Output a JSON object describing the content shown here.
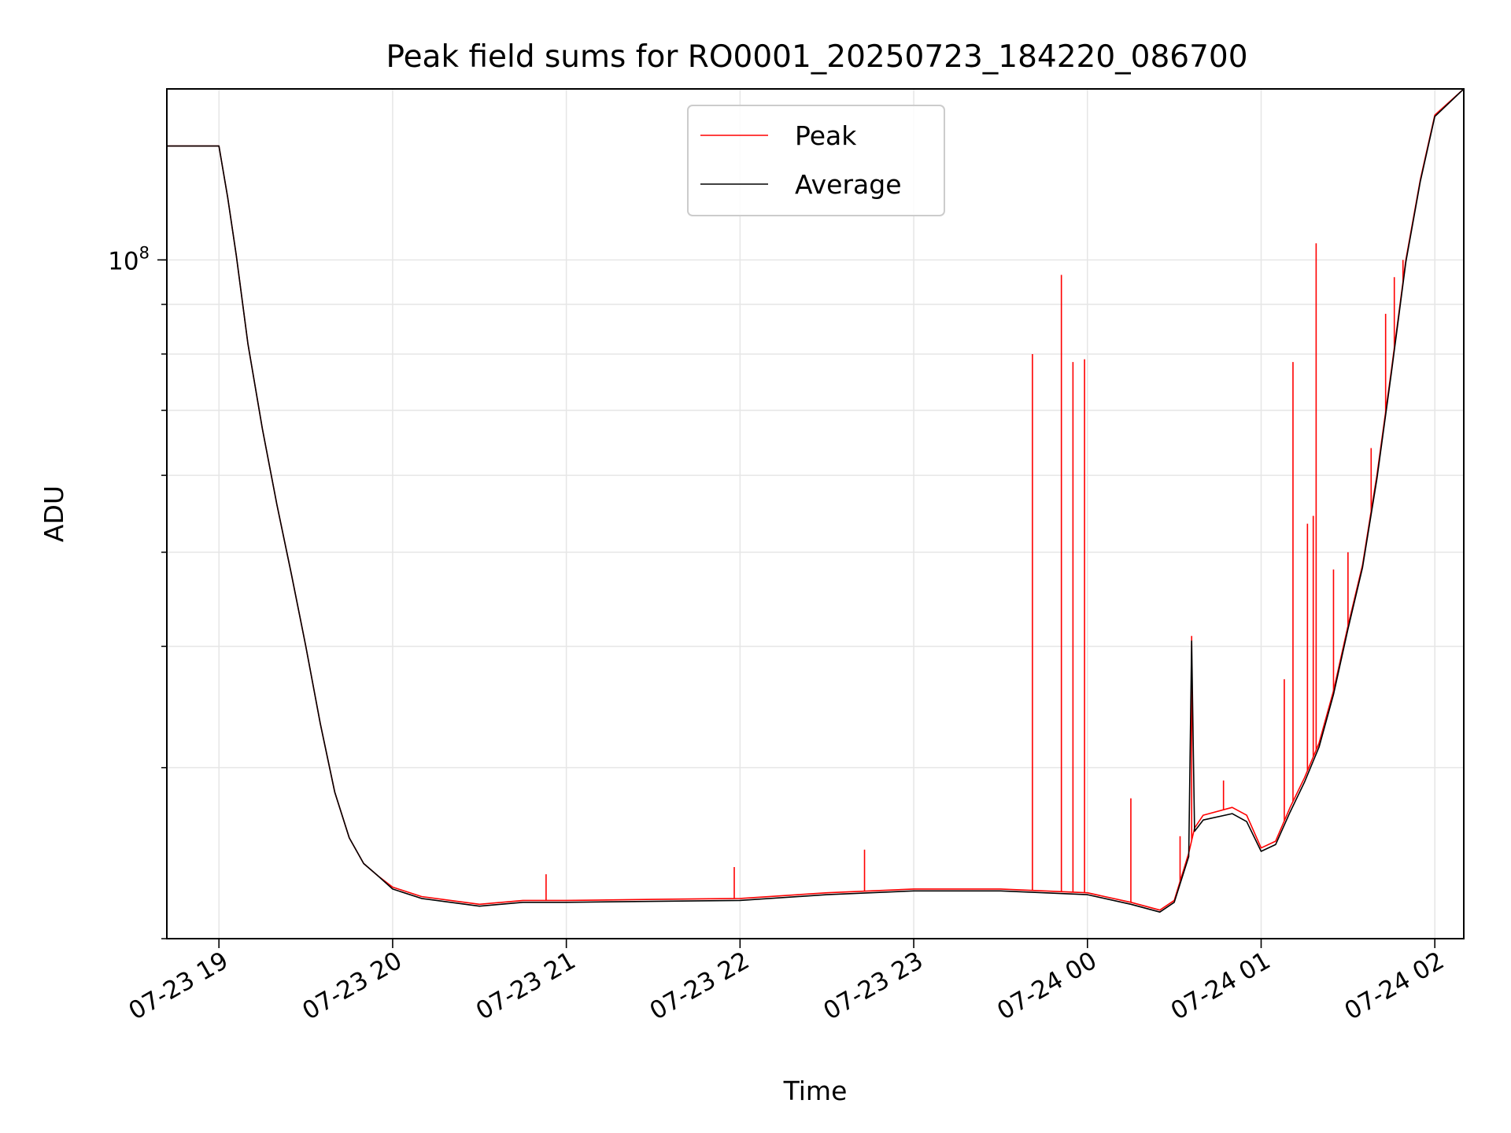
{
  "chart_data": {
    "type": "line",
    "title": "Peak field sums for RO0001_20250723_184220_086700",
    "xlabel": "Time",
    "ylabel": "ADU",
    "y_scale": "log",
    "ylim": [
      20000000,
      150000000
    ],
    "xlim": [
      "2025-07-23 18:42",
      "2025-07-24 02:10"
    ],
    "x_ticks": [
      {
        "t": "2025-07-23 19:00",
        "label": "07-23 19"
      },
      {
        "t": "2025-07-23 20:00",
        "label": "07-23 20"
      },
      {
        "t": "2025-07-23 21:00",
        "label": "07-23 21"
      },
      {
        "t": "2025-07-23 22:00",
        "label": "07-23 22"
      },
      {
        "t": "2025-07-23 23:00",
        "label": "07-23 23"
      },
      {
        "t": "2025-07-24 00:00",
        "label": "07-24 00"
      },
      {
        "t": "2025-07-24 01:00",
        "label": "07-24 01"
      },
      {
        "t": "2025-07-24 02:00",
        "label": "07-24 02"
      }
    ],
    "y_major_ticks": [
      {
        "v": 100000000,
        "base": "10",
        "exp": "8"
      }
    ],
    "grid": true,
    "legend_position": "upper-center",
    "series": [
      {
        "name": "Peak",
        "color": "#ff0000",
        "points": [
          [
            "2025-07-23 18:42",
            131000000
          ],
          [
            "2025-07-23 19:00",
            131000000
          ],
          [
            "2025-07-23 19:03",
            116000000
          ],
          [
            "2025-07-23 19:06",
            101000000
          ],
          [
            "2025-07-23 19:10",
            82000000
          ],
          [
            "2025-07-23 19:15",
            67000000
          ],
          [
            "2025-07-23 19:20",
            56000000
          ],
          [
            "2025-07-23 19:25",
            47500000
          ],
          [
            "2025-07-23 19:30",
            40000000
          ],
          [
            "2025-07-23 19:35",
            33300000
          ],
          [
            "2025-07-23 19:40",
            28300000
          ],
          [
            "2025-07-23 19:45",
            25400000
          ],
          [
            "2025-07-23 19:50",
            23900000
          ],
          [
            "2025-07-23 19:55",
            23200000
          ],
          [
            "2025-07-23 20:00",
            22600000
          ],
          [
            "2025-07-23 20:10",
            22100000
          ],
          [
            "2025-07-23 20:20",
            21900000
          ],
          [
            "2025-07-23 20:30",
            21700000
          ],
          [
            "2025-07-23 20:45",
            21900000
          ],
          [
            "2025-07-23 21:00",
            21900000
          ],
          [
            "2025-07-23 21:30",
            21950000
          ],
          [
            "2025-07-23 22:00",
            22000000
          ],
          [
            "2025-07-23 22:30",
            22300000
          ],
          [
            "2025-07-23 23:00",
            22500000
          ],
          [
            "2025-07-23 23:30",
            22500000
          ],
          [
            "2025-07-24 00:00",
            22300000
          ],
          [
            "2025-07-24 00:15",
            21800000
          ],
          [
            "2025-07-24 00:25",
            21400000
          ],
          [
            "2025-07-24 00:30",
            21900000
          ],
          [
            "2025-07-24 00:35",
            24500000
          ],
          [
            "2025-07-24 00:37",
            26000000
          ],
          [
            "2025-07-24 00:40",
            26800000
          ],
          [
            "2025-07-24 00:50",
            27300000
          ],
          [
            "2025-07-24 00:55",
            26800000
          ],
          [
            "2025-07-24 01:00",
            24800000
          ],
          [
            "2025-07-24 01:05",
            25200000
          ],
          [
            "2025-07-24 01:10",
            27300000
          ],
          [
            "2025-07-24 01:15",
            29300000
          ],
          [
            "2025-07-24 01:20",
            31800000
          ],
          [
            "2025-07-24 01:25",
            36000000
          ],
          [
            "2025-07-24 01:30",
            42000000
          ],
          [
            "2025-07-24 01:35",
            48500000
          ],
          [
            "2025-07-24 01:40",
            60000000
          ],
          [
            "2025-07-24 01:45",
            77000000
          ],
          [
            "2025-07-24 01:50",
            100000000
          ],
          [
            "2025-07-24 01:55",
            121000000
          ],
          [
            "2025-07-24 02:00",
            141000000
          ],
          [
            "2025-07-24 02:10",
            150000000
          ]
        ],
        "spikes": [
          [
            "2025-07-23 23:41",
            80000000
          ],
          [
            "2025-07-23 23:51",
            96500000
          ],
          [
            "2025-07-23 23:55",
            78500000
          ],
          [
            "2025-07-23 23:59",
            79000000
          ],
          [
            "2025-07-24 00:15",
            27900000
          ],
          [
            "2025-07-24 00:32",
            25500000
          ],
          [
            "2025-07-24 00:36",
            41000000
          ],
          [
            "2025-07-24 00:47",
            29100000
          ],
          [
            "2025-07-24 01:08",
            37000000
          ],
          [
            "2025-07-24 01:11",
            78500000
          ],
          [
            "2025-07-24 01:16",
            53500000
          ],
          [
            "2025-07-24 01:18",
            54500000
          ],
          [
            "2025-07-24 01:19",
            104000000
          ],
          [
            "2025-07-24 01:25",
            48000000
          ],
          [
            "2025-07-24 01:30",
            50000000
          ],
          [
            "2025-07-24 01:38",
            64000000
          ],
          [
            "2025-07-24 01:43",
            88000000
          ],
          [
            "2025-07-24 01:46",
            96000000
          ],
          [
            "2025-07-24 01:49",
            100000000
          ],
          [
            "2025-07-23 22:43",
            24700000
          ],
          [
            "2025-07-23 21:58",
            23700000
          ],
          [
            "2025-07-23 20:53",
            23300000
          ]
        ]
      },
      {
        "name": "Average",
        "color": "#000000",
        "points": [
          [
            "2025-07-23 18:42",
            131000000
          ],
          [
            "2025-07-23 19:00",
            131000000
          ],
          [
            "2025-07-23 19:03",
            116000000
          ],
          [
            "2025-07-23 19:06",
            101000000
          ],
          [
            "2025-07-23 19:10",
            82000000
          ],
          [
            "2025-07-23 19:15",
            67000000
          ],
          [
            "2025-07-23 19:20",
            56000000
          ],
          [
            "2025-07-23 19:25",
            47500000
          ],
          [
            "2025-07-23 19:30",
            40000000
          ],
          [
            "2025-07-23 19:35",
            33300000
          ],
          [
            "2025-07-23 19:40",
            28300000
          ],
          [
            "2025-07-23 19:45",
            25400000
          ],
          [
            "2025-07-23 19:50",
            23900000
          ],
          [
            "2025-07-23 19:55",
            23200000
          ],
          [
            "2025-07-23 20:00",
            22500000
          ],
          [
            "2025-07-23 20:10",
            22000000
          ],
          [
            "2025-07-23 20:20",
            21800000
          ],
          [
            "2025-07-23 20:30",
            21600000
          ],
          [
            "2025-07-23 20:45",
            21800000
          ],
          [
            "2025-07-23 21:00",
            21800000
          ],
          [
            "2025-07-23 21:30",
            21850000
          ],
          [
            "2025-07-23 22:00",
            21900000
          ],
          [
            "2025-07-23 22:30",
            22200000
          ],
          [
            "2025-07-23 23:00",
            22400000
          ],
          [
            "2025-07-23 23:30",
            22400000
          ],
          [
            "2025-07-24 00:00",
            22200000
          ],
          [
            "2025-07-24 00:15",
            21700000
          ],
          [
            "2025-07-24 00:25",
            21300000
          ],
          [
            "2025-07-24 00:30",
            21800000
          ],
          [
            "2025-07-24 00:35",
            24300000
          ],
          [
            "2025-07-24 00:36",
            40500000
          ],
          [
            "2025-07-24 00:37",
            25800000
          ],
          [
            "2025-07-24 00:40",
            26500000
          ],
          [
            "2025-07-24 00:50",
            26900000
          ],
          [
            "2025-07-24 00:55",
            26400000
          ],
          [
            "2025-07-24 01:00",
            24600000
          ],
          [
            "2025-07-24 01:05",
            25000000
          ],
          [
            "2025-07-24 01:10",
            27000000
          ],
          [
            "2025-07-24 01:15",
            29000000
          ],
          [
            "2025-07-24 01:20",
            31500000
          ],
          [
            "2025-07-24 01:25",
            35700000
          ],
          [
            "2025-07-24 01:30",
            41700000
          ],
          [
            "2025-07-24 01:35",
            48200000
          ],
          [
            "2025-07-24 01:40",
            59500000
          ],
          [
            "2025-07-24 01:45",
            76500000
          ],
          [
            "2025-07-24 01:50",
            99500000
          ],
          [
            "2025-07-24 01:55",
            120500000
          ],
          [
            "2025-07-24 02:00",
            140500000
          ],
          [
            "2025-07-24 02:10",
            150000000
          ]
        ]
      }
    ]
  }
}
